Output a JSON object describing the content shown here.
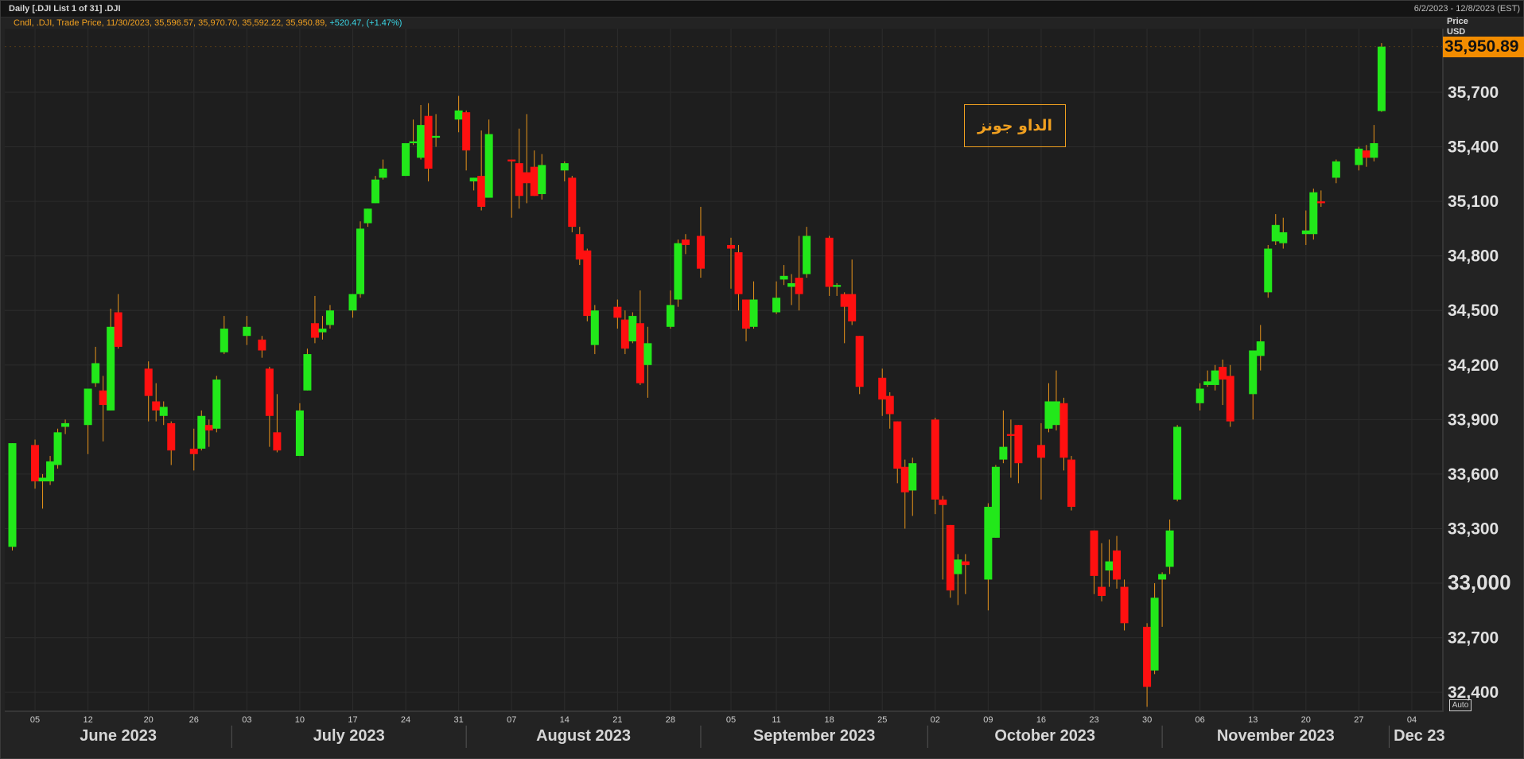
{
  "header": {
    "title": "Daily [.DJI List 1 of 31] .DJI",
    "date_range": "6/2/2023 - 12/8/2023 (EST)"
  },
  "legend": {
    "main": "Cndl, .DJI, Trade Price,  11/30/2023, 35,596.57, 35,970.70, 35,592.22, 35,950.89,",
    "change": "+520.47, (+1.47%)"
  },
  "axis": {
    "title": "Price",
    "unit": "USD",
    "auto_label": "Auto"
  },
  "annotation": "الداو جونز",
  "last_price_label": "35,950.89",
  "colors": {
    "up": "#22e81a",
    "down": "#ff1010",
    "wick": "#e8941a",
    "grid": "#2c2c2c",
    "background": "#232323",
    "accent": "#f28c00"
  },
  "chart_data": {
    "type": "candlestick",
    "title": "",
    "y_ticks": [
      "32,400",
      "32,700",
      "33,000",
      "33,300",
      "33,600",
      "33,900",
      "34,200",
      "34,500",
      "34,800",
      "35,100",
      "35,400",
      "35,700"
    ],
    "ylim": [
      32300,
      36050
    ],
    "x_day_ticks": [
      "05",
      "12",
      "20",
      "26",
      "03",
      "10",
      "17",
      "24",
      "31",
      "07",
      "14",
      "21",
      "28",
      "05",
      "11",
      "18",
      "25",
      "02",
      "09",
      "16",
      "23",
      "30",
      "06",
      "13",
      "20",
      "27",
      "04"
    ],
    "months": [
      "June 2023",
      "July 2023",
      "August 2023",
      "September 2023",
      "October 2023",
      "November 2023",
      "Dec 23"
    ],
    "x_range": [
      "2023-06-02",
      "2023-12-08"
    ],
    "grid": true,
    "last_close": 35950.89,
    "candles": [
      {
        "d": "2023-06-02",
        "o": 33200,
        "h": 33770,
        "l": 33180,
        "c": 33770
      },
      {
        "d": "2023-06-05",
        "o": 33760,
        "h": 33790,
        "l": 33520,
        "c": 33560
      },
      {
        "d": "2023-06-06",
        "o": 33560,
        "h": 33600,
        "l": 33410,
        "c": 33580
      },
      {
        "d": "2023-06-07",
        "o": 33560,
        "h": 33700,
        "l": 33540,
        "c": 33670
      },
      {
        "d": "2023-06-08",
        "o": 33650,
        "h": 33850,
        "l": 33630,
        "c": 33830
      },
      {
        "d": "2023-06-09",
        "o": 33860,
        "h": 33900,
        "l": 33820,
        "c": 33880
      },
      {
        "d": "2023-06-12",
        "o": 33870,
        "h": 34070,
        "l": 33710,
        "c": 34070
      },
      {
        "d": "2023-06-13",
        "o": 34100,
        "h": 34300,
        "l": 34080,
        "c": 34210
      },
      {
        "d": "2023-06-14",
        "o": 34060,
        "h": 34140,
        "l": 33780,
        "c": 33980
      },
      {
        "d": "2023-06-15",
        "o": 33950,
        "h": 34510,
        "l": 33950,
        "c": 34410
      },
      {
        "d": "2023-06-16",
        "o": 34490,
        "h": 34590,
        "l": 34290,
        "c": 34300
      },
      {
        "d": "2023-06-20",
        "o": 34180,
        "h": 34220,
        "l": 33890,
        "c": 34030
      },
      {
        "d": "2023-06-21",
        "o": 34000,
        "h": 34100,
        "l": 33890,
        "c": 33950
      },
      {
        "d": "2023-06-22",
        "o": 33920,
        "h": 34000,
        "l": 33870,
        "c": 33970
      },
      {
        "d": "2023-06-23",
        "o": 33880,
        "h": 33890,
        "l": 33650,
        "c": 33730
      },
      {
        "d": "2023-06-26",
        "o": 33740,
        "h": 33850,
        "l": 33620,
        "c": 33710
      },
      {
        "d": "2023-06-27",
        "o": 33740,
        "h": 33950,
        "l": 33730,
        "c": 33920
      },
      {
        "d": "2023-06-28",
        "o": 33870,
        "h": 33900,
        "l": 33750,
        "c": 33840
      },
      {
        "d": "2023-06-29",
        "o": 33850,
        "h": 34140,
        "l": 33830,
        "c": 34120
      },
      {
        "d": "2023-06-30",
        "o": 34270,
        "h": 34470,
        "l": 34260,
        "c": 34400
      },
      {
        "d": "2023-07-03",
        "o": 34360,
        "h": 34470,
        "l": 34310,
        "c": 34410
      },
      {
        "d": "2023-07-05",
        "o": 34340,
        "h": 34360,
        "l": 34240,
        "c": 34280
      },
      {
        "d": "2023-07-06",
        "o": 34180,
        "h": 34190,
        "l": 33750,
        "c": 33920
      },
      {
        "d": "2023-07-07",
        "o": 33830,
        "h": 34040,
        "l": 33720,
        "c": 33730
      },
      {
        "d": "2023-07-10",
        "o": 33700,
        "h": 33990,
        "l": 33700,
        "c": 33950
      },
      {
        "d": "2023-07-11",
        "o": 34060,
        "h": 34290,
        "l": 34060,
        "c": 34260
      },
      {
        "d": "2023-07-12",
        "o": 34430,
        "h": 34580,
        "l": 34320,
        "c": 34350
      },
      {
        "d": "2023-07-13",
        "o": 34380,
        "h": 34470,
        "l": 34340,
        "c": 34400
      },
      {
        "d": "2023-07-14",
        "o": 34420,
        "h": 34530,
        "l": 34400,
        "c": 34500
      },
      {
        "d": "2023-07-17",
        "o": 34500,
        "h": 34590,
        "l": 34460,
        "c": 34590
      },
      {
        "d": "2023-07-18",
        "o": 34590,
        "h": 34990,
        "l": 34570,
        "c": 34950
      },
      {
        "d": "2023-07-19",
        "o": 34980,
        "h": 35060,
        "l": 34960,
        "c": 35060
      },
      {
        "d": "2023-07-20",
        "o": 35090,
        "h": 35240,
        "l": 35090,
        "c": 35220
      },
      {
        "d": "2023-07-21",
        "o": 35230,
        "h": 35330,
        "l": 35220,
        "c": 35280
      },
      {
        "d": "2023-07-24",
        "o": 35240,
        "h": 35390,
        "l": 35240,
        "c": 35420
      },
      {
        "d": "2023-07-25",
        "o": 35420,
        "h": 35550,
        "l": 35410,
        "c": 35430
      },
      {
        "d": "2023-07-26",
        "o": 35340,
        "h": 35630,
        "l": 35330,
        "c": 35520
      },
      {
        "d": "2023-07-27",
        "o": 35570,
        "h": 35640,
        "l": 35210,
        "c": 35280
      },
      {
        "d": "2023-07-28",
        "o": 35450,
        "h": 35580,
        "l": 35400,
        "c": 35460
      },
      {
        "d": "2023-07-31",
        "o": 35550,
        "h": 35680,
        "l": 35480,
        "c": 35600
      },
      {
        "d": "2023-08-01",
        "o": 35590,
        "h": 35600,
        "l": 35270,
        "c": 35380
      },
      {
        "d": "2023-08-02",
        "o": 35210,
        "h": 35230,
        "l": 35160,
        "c": 35230
      },
      {
        "d": "2023-08-03",
        "o": 35240,
        "h": 35490,
        "l": 35050,
        "c": 35070
      },
      {
        "d": "2023-08-04",
        "o": 35120,
        "h": 35550,
        "l": 35120,
        "c": 35470
      },
      {
        "d": "2023-08-07",
        "o": 35330,
        "h": 35330,
        "l": 35010,
        "c": 35320
      },
      {
        "d": "2023-08-08",
        "o": 35310,
        "h": 35500,
        "l": 35060,
        "c": 35130
      },
      {
        "d": "2023-08-09",
        "o": 35260,
        "h": 35580,
        "l": 35090,
        "c": 35200
      },
      {
        "d": "2023-08-10",
        "o": 35290,
        "h": 35380,
        "l": 35130,
        "c": 35130
      },
      {
        "d": "2023-08-11",
        "o": 35140,
        "h": 35360,
        "l": 35110,
        "c": 35300
      },
      {
        "d": "2023-08-14",
        "o": 35270,
        "h": 35320,
        "l": 35210,
        "c": 35310
      },
      {
        "d": "2023-08-15",
        "o": 35230,
        "h": 35240,
        "l": 34930,
        "c": 34960
      },
      {
        "d": "2023-08-16",
        "o": 34920,
        "h": 34960,
        "l": 34750,
        "c": 34780
      },
      {
        "d": "2023-08-17",
        "o": 34830,
        "h": 34840,
        "l": 34440,
        "c": 34470
      },
      {
        "d": "2023-08-18",
        "o": 34310,
        "h": 34530,
        "l": 34260,
        "c": 34500
      },
      {
        "d": "2023-08-21",
        "o": 34520,
        "h": 34560,
        "l": 34400,
        "c": 34460
      },
      {
        "d": "2023-08-22",
        "o": 34450,
        "h": 34500,
        "l": 34260,
        "c": 34290
      },
      {
        "d": "2023-08-23",
        "o": 34330,
        "h": 34490,
        "l": 34320,
        "c": 34470
      },
      {
        "d": "2023-08-24",
        "o": 34430,
        "h": 34610,
        "l": 34090,
        "c": 34100
      },
      {
        "d": "2023-08-25",
        "o": 34200,
        "h": 34410,
        "l": 34020,
        "c": 34320
      },
      {
        "d": "2023-08-28",
        "o": 34410,
        "h": 34610,
        "l": 34400,
        "c": 34530
      },
      {
        "d": "2023-08-29",
        "o": 34560,
        "h": 34890,
        "l": 34520,
        "c": 34870
      },
      {
        "d": "2023-08-30",
        "o": 34890,
        "h": 34920,
        "l": 34810,
        "c": 34860
      },
      {
        "d": "2023-09-01",
        "o": 34910,
        "h": 35070,
        "l": 34680,
        "c": 34730
      },
      {
        "d": "2023-09-05",
        "o": 34860,
        "h": 34900,
        "l": 34620,
        "c": 34840
      },
      {
        "d": "2023-09-06",
        "o": 34820,
        "h": 34860,
        "l": 34500,
        "c": 34590
      },
      {
        "d": "2023-09-07",
        "o": 34560,
        "h": 34560,
        "l": 34330,
        "c": 34400
      },
      {
        "d": "2023-09-08",
        "o": 34410,
        "h": 34660,
        "l": 34400,
        "c": 34560
      },
      {
        "d": "2023-09-11",
        "o": 34490,
        "h": 34660,
        "l": 34480,
        "c": 34570
      },
      {
        "d": "2023-09-12",
        "o": 34670,
        "h": 34750,
        "l": 34640,
        "c": 34690
      },
      {
        "d": "2023-09-13",
        "o": 34630,
        "h": 34700,
        "l": 34530,
        "c": 34650
      },
      {
        "d": "2023-09-14",
        "o": 34680,
        "h": 34910,
        "l": 34500,
        "c": 34590
      },
      {
        "d": "2023-09-15",
        "o": 34700,
        "h": 34960,
        "l": 34680,
        "c": 34910
      },
      {
        "d": "2023-09-18",
        "o": 34900,
        "h": 34910,
        "l": 34580,
        "c": 34630
      },
      {
        "d": "2023-09-19",
        "o": 34630,
        "h": 34650,
        "l": 34580,
        "c": 34640
      },
      {
        "d": "2023-09-20",
        "o": 34590,
        "h": 34600,
        "l": 34320,
        "c": 34520
      },
      {
        "d": "2023-09-21",
        "o": 34590,
        "h": 34780,
        "l": 34420,
        "c": 34440
      },
      {
        "d": "2023-09-22",
        "o": 34360,
        "h": 34360,
        "l": 34040,
        "c": 34080
      },
      {
        "d": "2023-09-25",
        "o": 34130,
        "h": 34180,
        "l": 33920,
        "c": 34010
      },
      {
        "d": "2023-09-26",
        "o": 34030,
        "h": 34050,
        "l": 33850,
        "c": 33930
      },
      {
        "d": "2023-09-27",
        "o": 33890,
        "h": 33890,
        "l": 33550,
        "c": 33630
      },
      {
        "d": "2023-09-28",
        "o": 33640,
        "h": 33680,
        "l": 33300,
        "c": 33500
      },
      {
        "d": "2023-09-29",
        "o": 33510,
        "h": 33690,
        "l": 33370,
        "c": 33660
      },
      {
        "d": "2023-10-02",
        "o": 33900,
        "h": 33910,
        "l": 33380,
        "c": 33460
      },
      {
        "d": "2023-10-03",
        "o": 33460,
        "h": 33480,
        "l": 33020,
        "c": 33430
      },
      {
        "d": "2023-10-04",
        "o": 33320,
        "h": 33320,
        "l": 32920,
        "c": 32960
      },
      {
        "d": "2023-10-05",
        "o": 33050,
        "h": 33160,
        "l": 32880,
        "c": 33130
      },
      {
        "d": "2023-10-06",
        "o": 33120,
        "h": 33160,
        "l": 32940,
        "c": 33100
      },
      {
        "d": "2023-10-09",
        "o": 33020,
        "h": 33440,
        "l": 32850,
        "c": 33420
      },
      {
        "d": "2023-10-10",
        "o": 33250,
        "h": 33650,
        "l": 33250,
        "c": 33640
      },
      {
        "d": "2023-10-11",
        "o": 33680,
        "h": 33950,
        "l": 33660,
        "c": 33750
      },
      {
        "d": "2023-10-12",
        "o": 33820,
        "h": 33900,
        "l": 33580,
        "c": 33810
      },
      {
        "d": "2023-10-13",
        "o": 33870,
        "h": 33870,
        "l": 33550,
        "c": 33660
      },
      {
        "d": "2023-10-16",
        "o": 33760,
        "h": 33880,
        "l": 33460,
        "c": 33690
      },
      {
        "d": "2023-10-17",
        "o": 33850,
        "h": 34100,
        "l": 33830,
        "c": 34000
      },
      {
        "d": "2023-10-18",
        "o": 33870,
        "h": 34170,
        "l": 33840,
        "c": 34000
      },
      {
        "d": "2023-10-19",
        "o": 33990,
        "h": 34020,
        "l": 33620,
        "c": 33690
      },
      {
        "d": "2023-10-20",
        "o": 33680,
        "h": 33700,
        "l": 33400,
        "c": 33420
      },
      {
        "d": "2023-10-23",
        "o": 33290,
        "h": 33290,
        "l": 32940,
        "c": 33040
      },
      {
        "d": "2023-10-24",
        "o": 32980,
        "h": 33220,
        "l": 32900,
        "c": 32930
      },
      {
        "d": "2023-10-25",
        "o": 33070,
        "h": 33240,
        "l": 32980,
        "c": 33120
      },
      {
        "d": "2023-10-26",
        "o": 33180,
        "h": 33260,
        "l": 32970,
        "c": 33020
      },
      {
        "d": "2023-10-27",
        "o": 32980,
        "h": 33020,
        "l": 32740,
        "c": 32780
      },
      {
        "d": "2023-10-30",
        "o": 32760,
        "h": 32780,
        "l": 32320,
        "c": 32430
      },
      {
        "d": "2023-10-31",
        "o": 32520,
        "h": 33000,
        "l": 32500,
        "c": 32920
      },
      {
        "d": "2023-11-01",
        "o": 33020,
        "h": 33060,
        "l": 32760,
        "c": 33050
      },
      {
        "d": "2023-11-02",
        "o": 33090,
        "h": 33350,
        "l": 33050,
        "c": 33290
      },
      {
        "d": "2023-11-03",
        "o": 33460,
        "h": 33870,
        "l": 33450,
        "c": 33860
      },
      {
        "d": "2023-11-06",
        "o": 33990,
        "h": 34100,
        "l": 33950,
        "c": 34070
      },
      {
        "d": "2023-11-07",
        "o": 34090,
        "h": 34170,
        "l": 34080,
        "c": 34110
      },
      {
        "d": "2023-11-08",
        "o": 34090,
        "h": 34200,
        "l": 34060,
        "c": 34170
      },
      {
        "d": "2023-11-09",
        "o": 34190,
        "h": 34230,
        "l": 33980,
        "c": 34120
      },
      {
        "d": "2023-11-10",
        "o": 34140,
        "h": 34200,
        "l": 33860,
        "c": 33890
      },
      {
        "d": "2023-11-13",
        "o": 34040,
        "h": 34260,
        "l": 33900,
        "c": 34280
      },
      {
        "d": "2023-11-14",
        "o": 34250,
        "h": 34420,
        "l": 34170,
        "c": 34330
      },
      {
        "d": "2023-11-15",
        "o": 34600,
        "h": 34860,
        "l": 34570,
        "c": 34840
      },
      {
        "d": "2023-11-16",
        "o": 34880,
        "h": 35030,
        "l": 34860,
        "c": 34970
      },
      {
        "d": "2023-11-17",
        "o": 34870,
        "h": 35010,
        "l": 34840,
        "c": 34930
      },
      {
        "d": "2023-11-20",
        "o": 34920,
        "h": 35050,
        "l": 34860,
        "c": 34940
      },
      {
        "d": "2023-11-21",
        "o": 34920,
        "h": 35170,
        "l": 34890,
        "c": 35150
      },
      {
        "d": "2023-11-22",
        "o": 35100,
        "h": 35160,
        "l": 35070,
        "c": 35090
      },
      {
        "d": "2023-11-24",
        "o": 35230,
        "h": 35330,
        "l": 35200,
        "c": 35320
      },
      {
        "d": "2023-11-27",
        "o": 35300,
        "h": 35400,
        "l": 35270,
        "c": 35390
      },
      {
        "d": "2023-11-28",
        "o": 35380,
        "h": 35410,
        "l": 35290,
        "c": 35340
      },
      {
        "d": "2023-11-29",
        "o": 35340,
        "h": 35520,
        "l": 35320,
        "c": 35420
      },
      {
        "d": "2023-11-30",
        "o": 35596.57,
        "h": 35970.7,
        "l": 35592.22,
        "c": 35950.89
      }
    ]
  }
}
